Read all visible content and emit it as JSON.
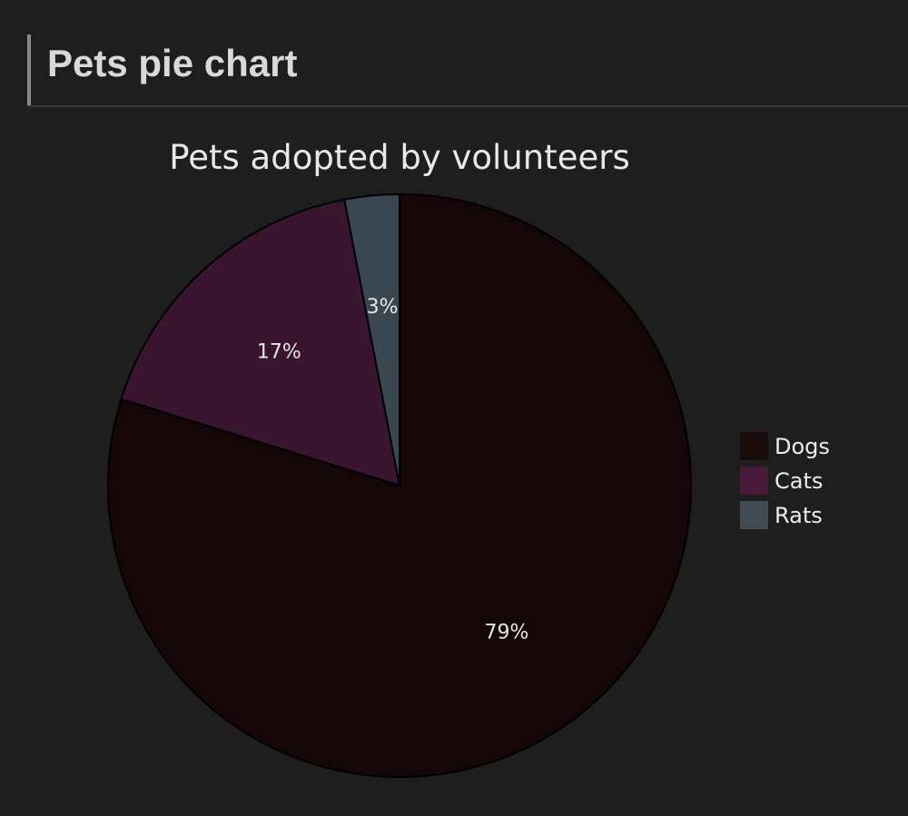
{
  "header": {
    "title": "Pets pie chart"
  },
  "chart_data": {
    "type": "pie",
    "title": "Pets adopted by volunteers",
    "categories": [
      "Dogs",
      "Cats",
      "Rats"
    ],
    "values": [
      79,
      17,
      3
    ],
    "labels": [
      "79%",
      "17%",
      "3%"
    ],
    "colors": [
      "#150708",
      "#3a1530",
      "#3a4750"
    ],
    "legend_colors": [
      "#1a0b0b",
      "#4a1a3a",
      "#414c53"
    ],
    "start": "12 o'clock",
    "direction": "clockwise",
    "legend_position": "right"
  },
  "colors": {
    "background": "#1e1e1e",
    "slice_border": "#000000",
    "text": "#e6e6e6"
  }
}
